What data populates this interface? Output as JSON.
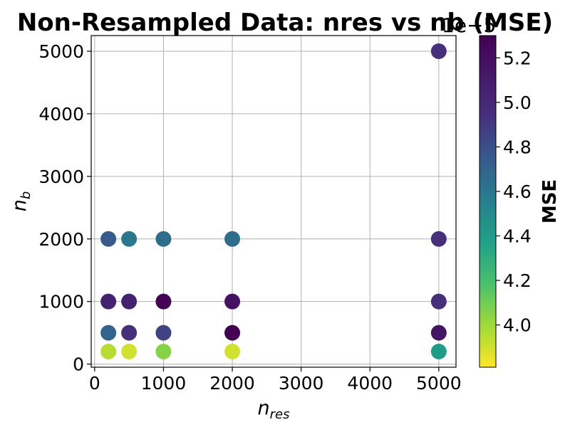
{
  "chart_data": {
    "type": "scatter",
    "title": "Non-Resampled Data: nres vs nb (MSE)",
    "xlabel": {
      "base": "n",
      "sub": "res"
    },
    "ylabel": {
      "base": "n",
      "sub": "b"
    },
    "xlim": [
      -50,
      5250
    ],
    "ylim": [
      -50,
      5250
    ],
    "xticks": [
      0,
      1000,
      2000,
      3000,
      4000,
      5000
    ],
    "yticks": [
      0,
      1000,
      2000,
      3000,
      4000,
      5000
    ],
    "grid": true,
    "colormap": "viridis_r",
    "colorbar": {
      "label": "MSE",
      "offset_text": "1e−5",
      "range": [
        3.81,
        5.3
      ],
      "ticks": [
        4.0,
        4.2,
        4.4,
        4.6,
        4.8,
        5.0,
        5.2
      ]
    },
    "points": [
      {
        "x": 200,
        "y": 200,
        "value": 3.95
      },
      {
        "x": 500,
        "y": 200,
        "value": 3.9
      },
      {
        "x": 1000,
        "y": 200,
        "value": 4.05
      },
      {
        "x": 2000,
        "y": 200,
        "value": 3.9
      },
      {
        "x": 5000,
        "y": 200,
        "value": 4.4
      },
      {
        "x": 200,
        "y": 500,
        "value": 4.7
      },
      {
        "x": 500,
        "y": 500,
        "value": 4.95
      },
      {
        "x": 1000,
        "y": 500,
        "value": 4.85
      },
      {
        "x": 2000,
        "y": 500,
        "value": 5.3
      },
      {
        "x": 5000,
        "y": 500,
        "value": 5.15
      },
      {
        "x": 200,
        "y": 1000,
        "value": 5.05
      },
      {
        "x": 500,
        "y": 1000,
        "value": 5.05
      },
      {
        "x": 1000,
        "y": 1000,
        "value": 5.28
      },
      {
        "x": 2000,
        "y": 1000,
        "value": 5.18
      },
      {
        "x": 5000,
        "y": 1000,
        "value": 4.95
      },
      {
        "x": 200,
        "y": 2000,
        "value": 4.75
      },
      {
        "x": 500,
        "y": 2000,
        "value": 4.6
      },
      {
        "x": 1000,
        "y": 2000,
        "value": 4.65
      },
      {
        "x": 2000,
        "y": 2000,
        "value": 4.65
      },
      {
        "x": 5000,
        "y": 2000,
        "value": 4.95
      },
      {
        "x": 5000,
        "y": 5000,
        "value": 4.95
      }
    ]
  }
}
